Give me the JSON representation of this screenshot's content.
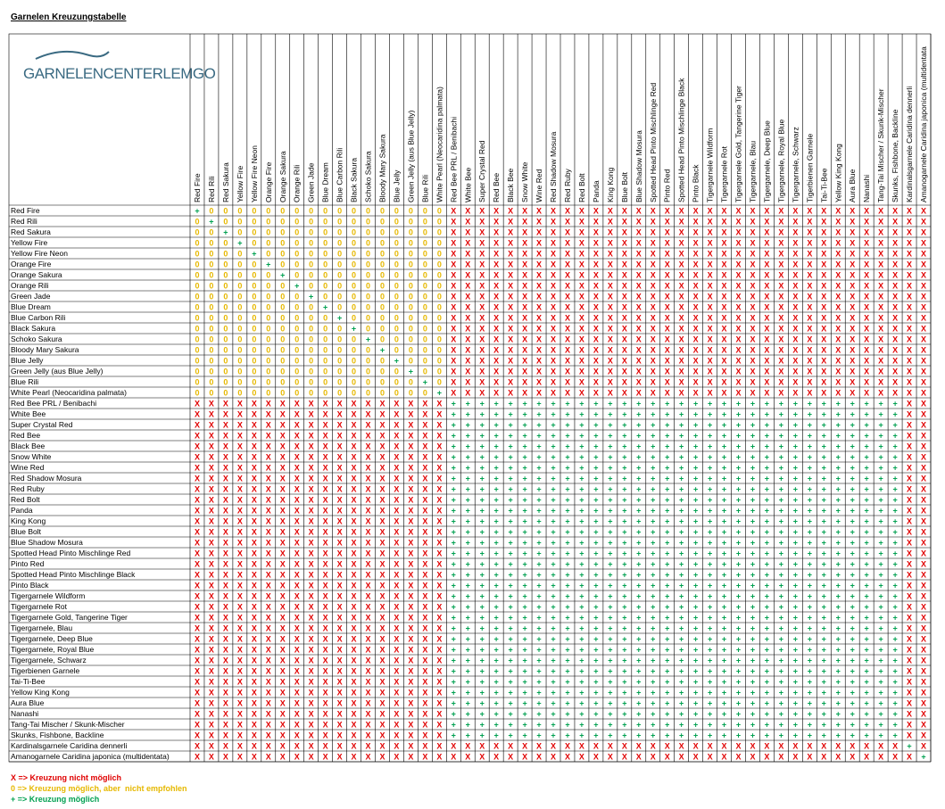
{
  "title": "Garnelen Kreuzungstabelle",
  "logo": "GARNELENCENTERLEMGO",
  "table": {
    "columns": [
      "Red Fire",
      "Red Rili",
      "Red Sakura",
      "Yellow Fire",
      "Yellow Fire Neon",
      "Orange Fire",
      "Orange Sakura",
      "Orange Rili",
      "Green Jade",
      "Blue Dream",
      "Blue Carbon Rili",
      "Black Sakura",
      "Schoko Sakura",
      "Bloody Mary Sakura",
      "Blue Jelly",
      "Green Jelly (aus Blue Jelly)",
      "Blue Rili",
      "White Pearl (Neocaridina palmata)",
      "Red Bee PRL / Benibachi",
      "White Bee",
      "Super Crystal Red",
      "Red Bee",
      "Black Bee",
      "Snow White",
      "Wine Red",
      "Red Shadow Mosura",
      "Red Ruby",
      "Red Bolt",
      "Panda",
      "King Kong",
      "Blue Bolt",
      "Blue Shadow Mosura",
      "Spotted Head Pinto Mischlinge Red",
      "Pinto Red",
      "Spotted Head Pinto Mischlinge Black",
      "Pinto Black",
      "Tigergarnele Wildform",
      "Tigergarnele Rot",
      "Tigergarnele Gold, Tangerine Tiger",
      "Tigergarnele, Blau",
      "Tigergarnele, Deep Blue",
      "Tigergarnele, Royal Blue",
      "Tigergarnele, Schwarz",
      "Tigerbienen Garnele",
      "Tai-Ti-Bee",
      "Yellow King Kong",
      "Aura Blue",
      "Nanashi",
      "Tang-Tai Mischer / Skunk-Mischer",
      "Skunks, Fishbone, Backline",
      "Kardinalsgarnele Caridina dennerli",
      "Amanogarnele Caridina japonica (multidentata"
    ],
    "rows": [
      {
        "name": "Red Fire",
        "cells": "+00000000000000000XXXXXXXXXXXXXXXXXXXXXXXXXXXXXXXXXX"
      },
      {
        "name": "Red Rili",
        "cells": "0+0000000000000000XXXXXXXXXXXXXXXXXXXXXXXXXXXXXXXXXX"
      },
      {
        "name": "Red Sakura",
        "cells": "00+000000000000000XXXXXXXXXXXXXXXXXXXXXXXXXXXXXXXXXX"
      },
      {
        "name": "Yellow Fire",
        "cells": "000+00000000000000XXXXXXXXXXXXXXXXXXXXXXXXXXXXXXXXXX"
      },
      {
        "name": "Yellow Fire Neon",
        "cells": "0000+0000000000000XXXXXXXXXXXXXXXXXXXXXXXXXXXXXXXXXX"
      },
      {
        "name": "Orange Fire",
        "cells": "00000+000000000000XXXXXXXXXXXXXXXXXXXXXXXXXXXXXXXXXX"
      },
      {
        "name": "Orange Sakura",
        "cells": "000000+00000000000XXXXXXXXXXXXXXXXXXXXXXXXXXXXXXXXXX"
      },
      {
        "name": "Orange Rili",
        "cells": "0000000+0000000000XXXXXXXXXXXXXXXXXXXXXXXXXXXXXXXXXX"
      },
      {
        "name": "Green Jade",
        "cells": "00000000+000000000XXXXXXXXXXXXXXXXXXXXXXXXXXXXXXXXXX"
      },
      {
        "name": "Blue Dream",
        "cells": "000000000+00000000XXXXXXXXXXXXXXXXXXXXXXXXXXXXXXXXXX"
      },
      {
        "name": "Blue Carbon Rili",
        "cells": "0000000000+0000000XXXXXXXXXXXXXXXXXXXXXXXXXXXXXXXXXX"
      },
      {
        "name": "Black Sakura",
        "cells": "00000000000+000000XXXXXXXXXXXXXXXXXXXXXXXXXXXXXXXXXX"
      },
      {
        "name": "Schoko Sakura",
        "cells": "000000000000+00000XXXXXXXXXXXXXXXXXXXXXXXXXXXXXXXXXX"
      },
      {
        "name": "Bloody Mary Sakura",
        "cells": "0000000000000+0000XXXXXXXXXXXXXXXXXXXXXXXXXXXXXXXXXX"
      },
      {
        "name": "Blue Jelly",
        "cells": "00000000000000+000XXXXXXXXXXXXXXXXXXXXXXXXXXXXXXXXXX"
      },
      {
        "name": "Green Jelly (aus Blue Jelly)",
        "cells": "000000000000000+00XXXXXXXXXXXXXXXXXXXXXXXXXXXXXXXXXX"
      },
      {
        "name": "Blue Rili",
        "cells": "0000000000000000+0XXXXXXXXXXXXXXXXXXXXXXXXXXXXXXXXXX"
      },
      {
        "name": "White Pearl (Neocaridina palmata)",
        "cells": "00000000000000000+XXXXXXXXXXXXXXXXXXXXXXXXXXXXXXXXXX"
      },
      {
        "name": "Red Bee PRL / Benibachi",
        "cells": "XXXXXXXXXXXXXXXXXX++++++++++++++++++++++++++++++++XX"
      },
      {
        "name": "White Bee",
        "cells": "XXXXXXXXXXXXXXXXXX++++++++++++++++++++++++++++++++XX"
      },
      {
        "name": "Super Crystal Red",
        "cells": "XXXXXXXXXXXXXXXXXX++++++++++++++++++++++++++++++++XX"
      },
      {
        "name": "Red Bee",
        "cells": "XXXXXXXXXXXXXXXXXX++++++++++++++++++++++++++++++++XX"
      },
      {
        "name": "Black Bee",
        "cells": "XXXXXXXXXXXXXXXXXX++++++++++++++++++++++++++++++++XX"
      },
      {
        "name": "Snow White",
        "cells": "XXXXXXXXXXXXXXXXXX++++++++++++++++++++++++++++++++XX"
      },
      {
        "name": "Wine Red",
        "cells": "XXXXXXXXXXXXXXXXXX++++++++++++++++++++++++++++++++XX"
      },
      {
        "name": "Red Shadow Mosura",
        "cells": "XXXXXXXXXXXXXXXXXX++++++++++++++++++++++++++++++++XX"
      },
      {
        "name": "Red Ruby",
        "cells": "XXXXXXXXXXXXXXXXXX++++++++++++++++++++++++++++++++XX"
      },
      {
        "name": "Red Bolt",
        "cells": "XXXXXXXXXXXXXXXXXX++++++++++++++++++++++++++++++++XX"
      },
      {
        "name": "Panda",
        "cells": "XXXXXXXXXXXXXXXXXX++++++++++++++++++++++++++++++++XX"
      },
      {
        "name": "King Kong",
        "cells": "XXXXXXXXXXXXXXXXXX++++++++++++++++++++++++++++++++XX"
      },
      {
        "name": "Blue Bolt",
        "cells": "XXXXXXXXXXXXXXXXXX++++++++++++++++++++++++++++++++XX"
      },
      {
        "name": "Blue Shadow Mosura",
        "cells": "XXXXXXXXXXXXXXXXXX++++++++++++++++++++++++++++++++XX"
      },
      {
        "name": "Spotted Head Pinto Mischlinge Red",
        "cells": "XXXXXXXXXXXXXXXXXX++++++++++++++++++++++++++++++++XX"
      },
      {
        "name": "Pinto Red",
        "cells": "XXXXXXXXXXXXXXXXXX++++++++++++++++++++++++++++++++XX"
      },
      {
        "name": "Spotted Head Pinto Mischlinge Black",
        "cells": "XXXXXXXXXXXXXXXXXX++++++++++++++++++++++++++++++++XX"
      },
      {
        "name": "Pinto Black",
        "cells": "XXXXXXXXXXXXXXXXXX++++++++++++++++++++++++++++++++XX"
      },
      {
        "name": "Tigergarnele Wildform",
        "cells": "XXXXXXXXXXXXXXXXXX++++++++++++++++++++++++++++++++XX"
      },
      {
        "name": "Tigergarnele Rot",
        "cells": "XXXXXXXXXXXXXXXXXX++++++++++++++++++++++++++++++++XX"
      },
      {
        "name": "Tigergarnele Gold, Tangerine Tiger",
        "cells": "XXXXXXXXXXXXXXXXXX++++++++++++++++++++++++++++++++XX"
      },
      {
        "name": "Tigergarnele, Blau",
        "cells": "XXXXXXXXXXXXXXXXXX++++++++++++++++++++++++++++++++XX"
      },
      {
        "name": "Tigergarnele, Deep Blue",
        "cells": "XXXXXXXXXXXXXXXXXX++++++++++++++++++++++++++++++++XX"
      },
      {
        "name": "Tigergarnele, Royal Blue",
        "cells": "XXXXXXXXXXXXXXXXXX++++++++++++++++++++++++++++++++XX"
      },
      {
        "name": "Tigergarnele, Schwarz",
        "cells": "XXXXXXXXXXXXXXXXXX++++++++++++++++++++++++++++++++XX"
      },
      {
        "name": "Tigerbienen Garnele",
        "cells": "XXXXXXXXXXXXXXXXXX++++++++++++++++++++++++++++++++XX"
      },
      {
        "name": "Tai-Ti-Bee",
        "cells": "XXXXXXXXXXXXXXXXXX++++++++++++++++++++++++++++++++XX"
      },
      {
        "name": "Yellow King Kong",
        "cells": "XXXXXXXXXXXXXXXXXX++++++++++++++++++++++++++++++++XX"
      },
      {
        "name": "Aura Blue",
        "cells": "XXXXXXXXXXXXXXXXXX++++++++++++++++++++++++++++++++XX"
      },
      {
        "name": "Nanashi",
        "cells": "XXXXXXXXXXXXXXXXXX++++++++++++++++++++++++++++++++XX"
      },
      {
        "name": "Tang-Tai Mischer / Skunk-Mischer",
        "cells": "XXXXXXXXXXXXXXXXXX++++++++++++++++++++++++++++++++XX"
      },
      {
        "name": "Skunks, Fishbone, Backline",
        "cells": "XXXXXXXXXXXXXXXXXX++++++++++++++++++++++++++++++++XX"
      },
      {
        "name": "Kardinalsgarnele Caridina dennerli",
        "cells": "XXXXXXXXXXXXXXXXXXXXXXXXXXXXXXXXXXXXXXXXXXXXXXXXXX+X"
      },
      {
        "name": "Amanogarnele Caridina japonica (multidentata)",
        "cells": "XXXXXXXXXXXXXXXXXXXXXXXXXXXXXXXXXXXXXXXXXXXXXXXXXXX+"
      }
    ]
  },
  "legend": [
    "X => Kreuzung nicht möglich",
    "0 => Kreuzung möglich, aber  nicht empfohlen",
    "+ => Kreuzung möglich"
  ]
}
